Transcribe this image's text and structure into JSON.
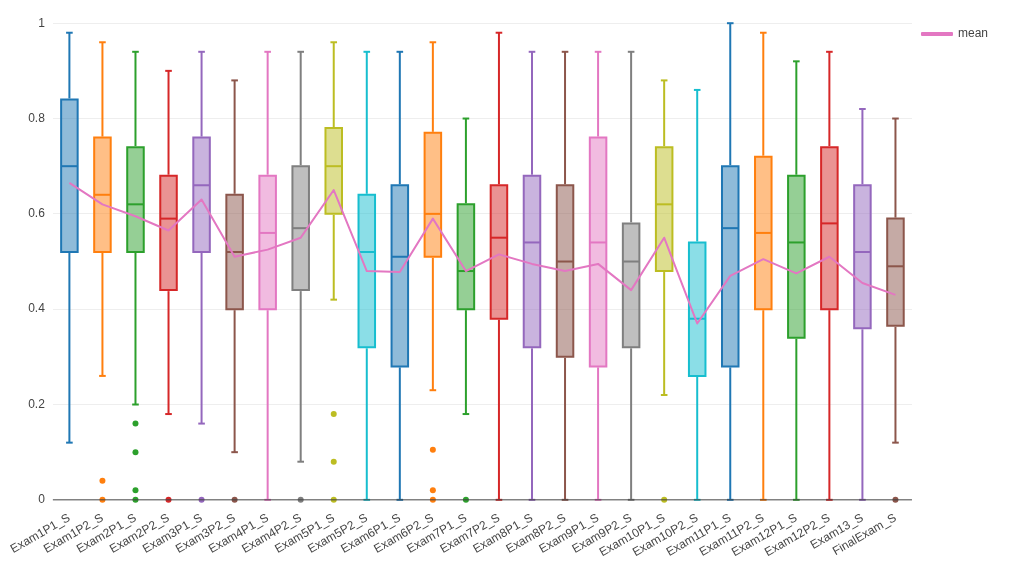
{
  "chart_data": {
    "type": "box",
    "categories": [
      "Exam1P1_S",
      "Exam1P2_S",
      "Exam2P1_S",
      "Exam2P2_S",
      "Exam3P1_S",
      "Exam3P2_S",
      "Exam4P1_S",
      "Exam4P2_S",
      "Exam5P1_S",
      "Exam5P2_S",
      "Exam6P1_S",
      "Exam6P2_S",
      "Exam7P1_S",
      "Exam7P2_S",
      "Exam8P1_S",
      "Exam8P2_S",
      "Exam9P1_S",
      "Exam9P2_S",
      "Exam10P1_S",
      "Exam10P2_S",
      "Exam11P1_S",
      "Exam11P2_S",
      "Exam12P1_S",
      "Exam12P2_S",
      "Exam13_S",
      "FinalExam_S"
    ],
    "ylim": [
      0,
      1
    ],
    "yticks": [
      0,
      0.2,
      0.4,
      0.6,
      0.8,
      1
    ],
    "grid": "y",
    "legend": "top right",
    "series": [
      {
        "type": "box",
        "colors": [
          "#1f77b4",
          "#ff7f0e",
          "#2ca02c",
          "#d62728",
          "#9467bd",
          "#8c564b",
          "#e377c2",
          "#7f7f7f",
          "#bcbd22",
          "#17becf",
          "#1f77b4",
          "#ff7f0e",
          "#2ca02c",
          "#d62728",
          "#9467bd",
          "#8c564b",
          "#e377c2",
          "#7f7f7f",
          "#bcbd22",
          "#17becf",
          "#1f77b4",
          "#ff7f0e",
          "#2ca02c",
          "#d62728",
          "#9467bd",
          "#8c564b"
        ],
        "boxes": [
          {
            "low": 0.12,
            "q1": 0.52,
            "median": 0.7,
            "q3": 0.84,
            "high": 0.98
          },
          {
            "low": 0.26,
            "q1": 0.52,
            "median": 0.64,
            "q3": 0.76,
            "high": 0.96,
            "outliers": [
              0.04,
              0
            ]
          },
          {
            "low": 0.2,
            "q1": 0.52,
            "median": 0.62,
            "q3": 0.74,
            "high": 0.94,
            "outliers": [
              0.16,
              0.1,
              0.02,
              0
            ]
          },
          {
            "low": 0.18,
            "q1": 0.44,
            "median": 0.59,
            "q3": 0.68,
            "high": 0.9,
            "outliers": [
              0
            ]
          },
          {
            "low": 0.16,
            "q1": 0.52,
            "median": 0.66,
            "q3": 0.76,
            "high": 0.94,
            "outliers": [
              0
            ]
          },
          {
            "low": 0.1,
            "q1": 0.4,
            "median": 0.52,
            "q3": 0.64,
            "high": 0.88,
            "outliers": [
              0
            ]
          },
          {
            "low": 0,
            "q1": 0.4,
            "median": 0.56,
            "q3": 0.68,
            "high": 0.94
          },
          {
            "low": 0.08,
            "q1": 0.44,
            "median": 0.57,
            "q3": 0.7,
            "high": 0.94,
            "outliers": [
              0
            ]
          },
          {
            "low": 0.42,
            "q1": 0.6,
            "median": 0.7,
            "q3": 0.78,
            "high": 0.96,
            "outliers": [
              0.18,
              0.08,
              0
            ]
          },
          {
            "low": 0,
            "q1": 0.32,
            "median": 0.52,
            "q3": 0.64,
            "high": 0.94
          },
          {
            "low": 0,
            "q1": 0.28,
            "median": 0.51,
            "q3": 0.66,
            "high": 0.94
          },
          {
            "low": 0.23,
            "q1": 0.51,
            "median": 0.6,
            "q3": 0.77,
            "high": 0.96,
            "outliers": [
              0.105,
              0.02,
              0
            ]
          },
          {
            "low": 0.18,
            "q1": 0.4,
            "median": 0.48,
            "q3": 0.62,
            "high": 0.8,
            "outliers": [
              0
            ]
          },
          {
            "low": 0,
            "q1": 0.38,
            "median": 0.55,
            "q3": 0.66,
            "high": 0.98
          },
          {
            "low": 0,
            "q1": 0.32,
            "median": 0.54,
            "q3": 0.68,
            "high": 0.94
          },
          {
            "low": 0,
            "q1": 0.3,
            "median": 0.5,
            "q3": 0.66,
            "high": 0.94
          },
          {
            "low": 0,
            "q1": 0.28,
            "median": 0.54,
            "q3": 0.76,
            "high": 0.94
          },
          {
            "low": 0,
            "q1": 0.32,
            "median": 0.5,
            "q3": 0.58,
            "high": 0.94
          },
          {
            "low": 0.22,
            "q1": 0.48,
            "median": 0.62,
            "q3": 0.74,
            "high": 0.88,
            "outliers": [
              0
            ]
          },
          {
            "low": 0,
            "q1": 0.26,
            "median": 0.38,
            "q3": 0.54,
            "high": 0.86
          },
          {
            "low": 0,
            "q1": 0.28,
            "median": 0.57,
            "q3": 0.7,
            "high": 1
          },
          {
            "low": 0,
            "q1": 0.4,
            "median": 0.56,
            "q3": 0.72,
            "high": 0.98
          },
          {
            "low": 0,
            "q1": 0.34,
            "median": 0.54,
            "q3": 0.68,
            "high": 0.92
          },
          {
            "low": 0,
            "q1": 0.4,
            "median": 0.58,
            "q3": 0.74,
            "high": 0.94
          },
          {
            "low": 0,
            "q1": 0.36,
            "median": 0.52,
            "q3": 0.66,
            "high": 0.82
          },
          {
            "low": 0.12,
            "q1": 0.365,
            "median": 0.49,
            "q3": 0.59,
            "high": 0.8,
            "outliers": [
              0
            ]
          }
        ]
      },
      {
        "type": "line",
        "name": "mean",
        "color": "#e377c2",
        "values": [
          0.665,
          0.62,
          0.595,
          0.565,
          0.63,
          0.51,
          0.525,
          0.55,
          0.65,
          0.48,
          0.478,
          0.59,
          0.48,
          0.515,
          0.495,
          0.48,
          0.495,
          0.44,
          0.55,
          0.37,
          0.47,
          0.505,
          0.475,
          0.51,
          0.455,
          0.43
        ]
      }
    ]
  }
}
